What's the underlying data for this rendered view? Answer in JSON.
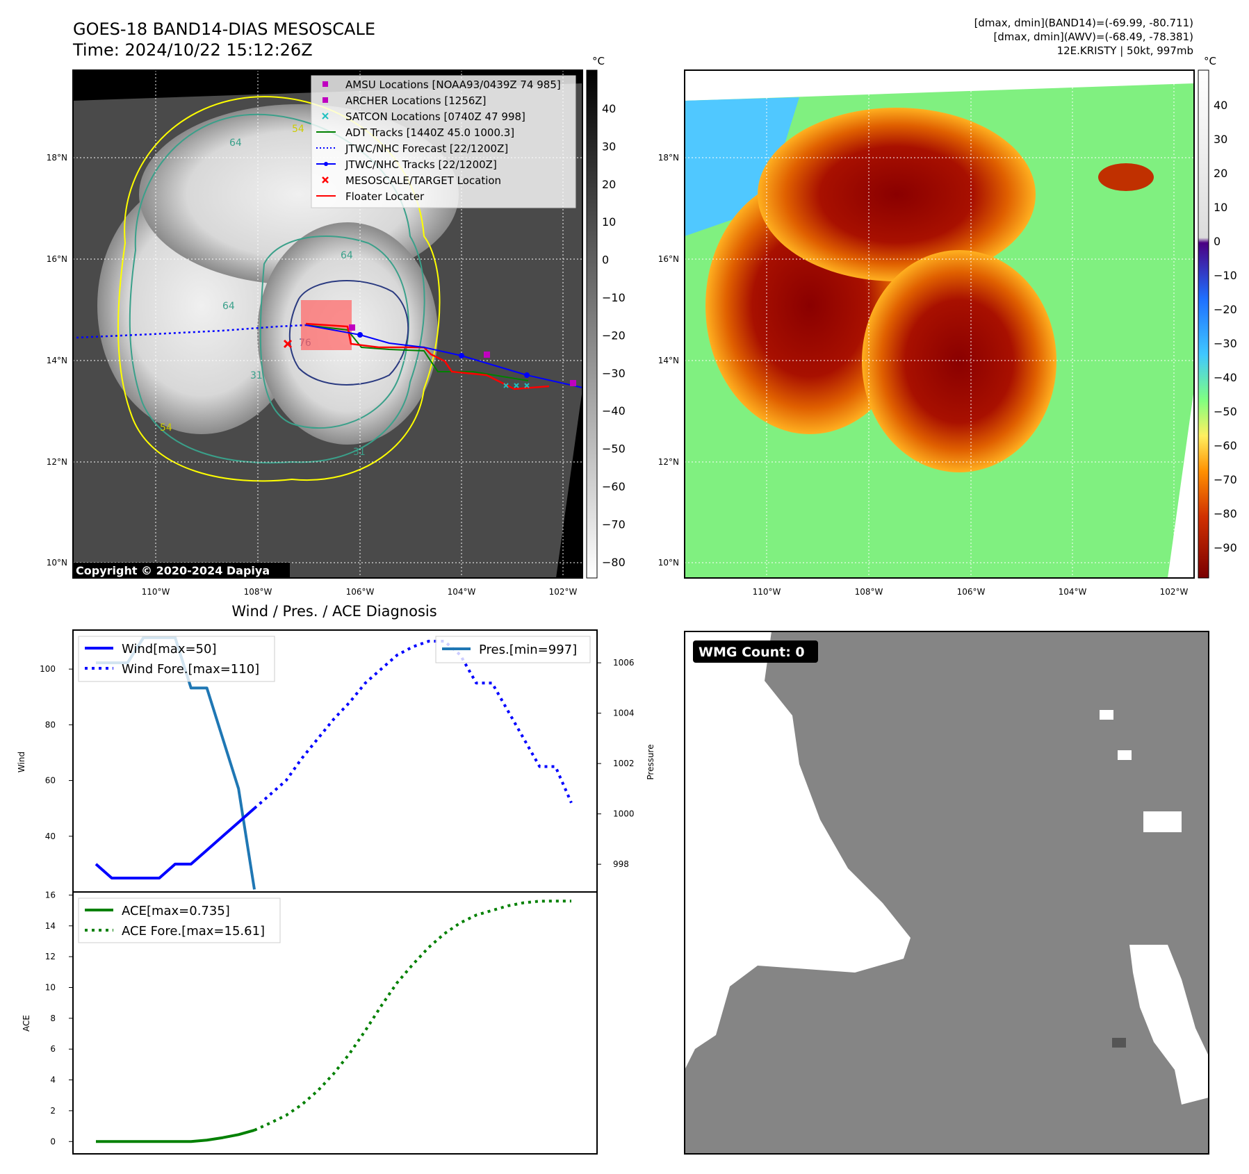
{
  "header": {
    "title_line1": "GOES-18 BAND14-DIAS MESOSCALE",
    "title_line2": "Time: 2024/10/22 15:12:26Z",
    "stats_line1": "[dmax, dmin](BAND14)=(-69.99, -80.711)",
    "stats_line2": "[dmax, dmin](AWV)=(-68.49, -78.381)",
    "stats_line3": "12E.KRISTY | 50kt, 997mb"
  },
  "copyright": "Copyright © 2020-2024 Dapiya",
  "colors": {
    "amsu": "#c000c0",
    "archer": "#c000c0",
    "satcon": "#20c0c0",
    "adt": "#008000",
    "forecast": "#0000ff",
    "tracks": "#0000ff",
    "target": "#ff0000",
    "floater": "#ff0000",
    "pres": "#1f77b4",
    "ace": "#008000",
    "contour_54": "#ffff00",
    "contour_64": "#3aa08a",
    "contour_76": "#2a3a80"
  },
  "map_left": {
    "unit": "°C",
    "colorbar_ticks": [
      "40",
      "30",
      "20",
      "10",
      "0",
      "−10",
      "−20",
      "−30",
      "−40",
      "−50",
      "−60",
      "−70",
      "−80"
    ],
    "lat_labels": [
      "18°N",
      "16°N",
      "14°N",
      "12°N",
      "10°N"
    ],
    "lon_labels": [
      "110°W",
      "108°W",
      "106°W",
      "104°W",
      "102°W"
    ],
    "contour_labels": [
      "54",
      "64",
      "64",
      "64",
      "76",
      "31",
      "54",
      "31"
    ],
    "legend": [
      {
        "label": "AMSU Locations [NOAA93/0439Z 74 985]",
        "icon": "magenta-square-icon"
      },
      {
        "label": "ARCHER Locations [1256Z]",
        "icon": "magenta-square-icon"
      },
      {
        "label": "SATCON Locations [0740Z 47 998]",
        "icon": "cyan-x-icon"
      },
      {
        "label": "ADT Tracks [1440Z 45.0 1000.3]",
        "icon": "green-line-icon"
      },
      {
        "label": "JTWC/NHC Forecast [22/1200Z]",
        "icon": "blue-dotted-line-icon"
      },
      {
        "label": "JTWC/NHC Tracks [22/1200Z]",
        "icon": "blue-line-dot-icon"
      },
      {
        "label": "MESOSCALE/TARGET Location",
        "icon": "red-x-icon"
      },
      {
        "label": "Floater Locater",
        "icon": "red-line-icon"
      }
    ]
  },
  "map_right": {
    "unit": "°C",
    "colorbar_ticks": [
      "40",
      "30",
      "20",
      "10",
      "0",
      "−10",
      "−20",
      "−30",
      "−40",
      "−50",
      "−60",
      "−70",
      "−80",
      "−90"
    ],
    "lat_labels": [
      "18°N",
      "16°N",
      "14°N",
      "12°N",
      "10°N"
    ],
    "lon_labels": [
      "110°W",
      "108°W",
      "106°W",
      "104°W",
      "102°W"
    ]
  },
  "wmg": {
    "label": "WMG Count: 0"
  },
  "chart_data": [
    {
      "type": "line",
      "title": "Wind / Pres. / ACE Diagnosis",
      "xlabel": "",
      "ylabel": "Wind",
      "y2label": "Pressure",
      "x": [
        0,
        1,
        2,
        3,
        4,
        5,
        6,
        7,
        8,
        9,
        10,
        11,
        12,
        13,
        14,
        15,
        16,
        17,
        18,
        19,
        20,
        21,
        22,
        23,
        24,
        25,
        26,
        27,
        28,
        29,
        30
      ],
      "ylim": [
        20,
        114
      ],
      "y2lim": [
        996.9,
        1007.3
      ],
      "yticks": [
        "100",
        "80",
        "60",
        "40"
      ],
      "y2ticks": [
        "1006",
        "1004",
        "1002",
        "1000",
        "998"
      ],
      "series": [
        {
          "name": "Wind[max=50]",
          "axis": "left",
          "style": "solid",
          "x": [
            0,
            1,
            2,
            3,
            4,
            5,
            6,
            7,
            8,
            9,
            10
          ],
          "values": [
            30,
            25,
            25,
            25,
            25,
            30,
            30,
            35,
            40,
            45,
            50
          ]
        },
        {
          "name": "Wind Fore.[max=110]",
          "axis": "left",
          "style": "dotted",
          "x": [
            10,
            11,
            12,
            13,
            14,
            15,
            16,
            17,
            18,
            19,
            20,
            21,
            22,
            23,
            24,
            25,
            26,
            27,
            28,
            29,
            30
          ],
          "values": [
            50,
            55,
            60,
            68,
            75,
            82,
            88,
            95,
            100,
            105,
            108,
            110,
            110,
            105,
            95,
            95,
            85,
            75,
            65,
            65,
            52
          ]
        },
        {
          "name": "Pres.[min=997]",
          "axis": "right",
          "style": "solid",
          "x": [
            0,
            1,
            2,
            3,
            4,
            5,
            6,
            7,
            8,
            9,
            10
          ],
          "values": [
            1006,
            1006,
            1006,
            1007,
            1007,
            1007,
            1005,
            1005,
            1003,
            1001,
            997
          ]
        }
      ]
    },
    {
      "type": "line",
      "xlabel": "",
      "ylabel": "ACE",
      "ylim": [
        -0.8,
        16.2
      ],
      "yticks": [
        "16",
        "14",
        "12",
        "10",
        "8",
        "6",
        "4",
        "2",
        "0"
      ],
      "series": [
        {
          "name": "ACE[max=0.735]",
          "style": "solid",
          "x": [
            0,
            1,
            2,
            3,
            4,
            5,
            6,
            7,
            8,
            9,
            10
          ],
          "values": [
            0,
            0,
            0,
            0,
            0,
            0,
            0,
            0.09,
            0.25,
            0.45,
            0.735
          ]
        },
        {
          "name": "ACE Fore.[max=15.61]",
          "style": "dotted",
          "x": [
            10,
            11,
            12,
            13,
            14,
            15,
            16,
            17,
            18,
            19,
            20,
            21,
            22,
            23,
            24,
            25,
            26,
            27,
            28,
            29,
            30
          ],
          "values": [
            0.735,
            1.2,
            1.7,
            2.4,
            3.3,
            4.4,
            5.7,
            7.2,
            8.8,
            10.3,
            11.5,
            12.6,
            13.5,
            14.2,
            14.7,
            15.0,
            15.3,
            15.5,
            15.6,
            15.61,
            15.61
          ]
        }
      ]
    }
  ]
}
